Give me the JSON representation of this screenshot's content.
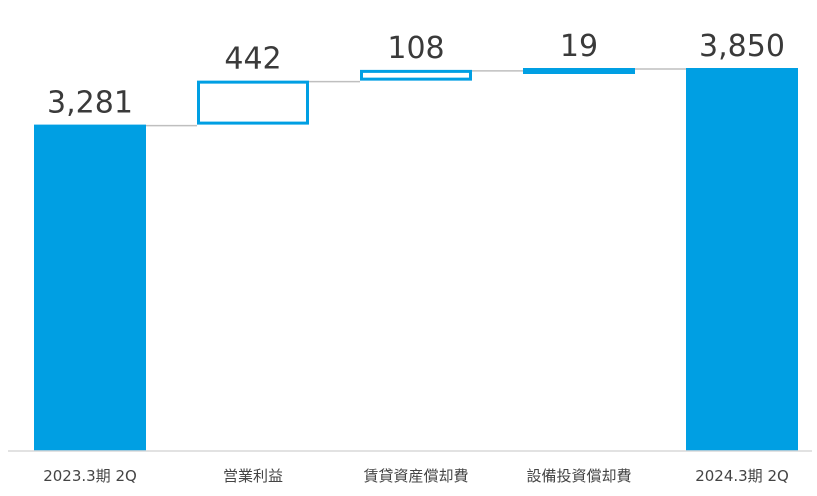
{
  "chart_data": {
    "type": "bar",
    "subtype": "waterfall",
    "categories": [
      "2023.3期 2Q",
      "営業利益",
      "賃貸資産償却費",
      "設備投資償却費",
      "2024.3期 2Q"
    ],
    "values": [
      3281,
      442,
      108,
      19,
      3850
    ],
    "value_labels": [
      "3,281",
      "442",
      "108",
      "19",
      "3,850"
    ],
    "bar_kinds": [
      "total",
      "increase-outline",
      "increase-outline",
      "increase-filled",
      "total"
    ],
    "ylim": [
      0,
      3850
    ],
    "title": "",
    "xlabel": "",
    "ylabel": "",
    "grid": false,
    "legend": "none",
    "colors": {
      "bar": "#009fe3",
      "connector": "#bfbfbf",
      "axis": "#d9d9d9",
      "label": "#3a3a3a"
    }
  }
}
